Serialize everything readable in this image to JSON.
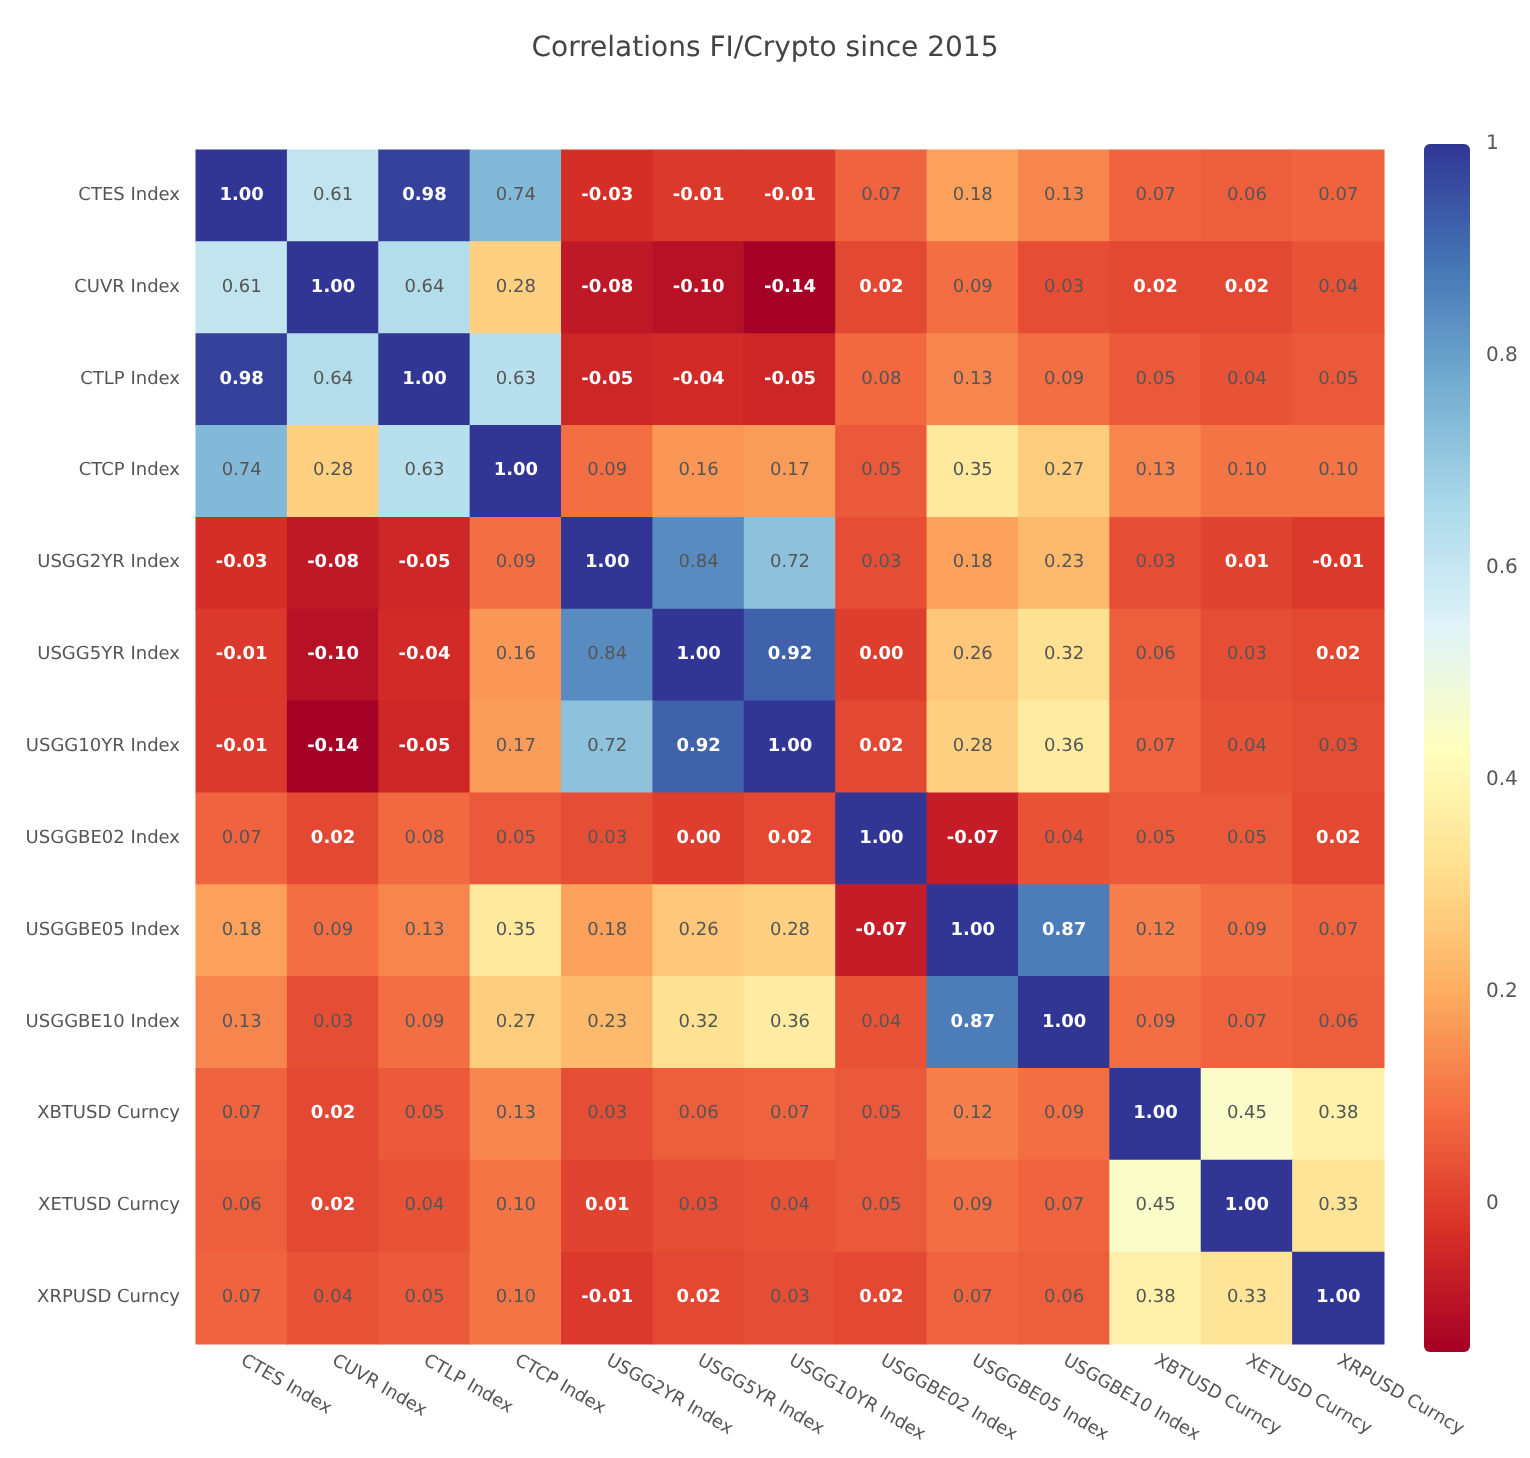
{
  "chart_data": {
    "type": "heatmap",
    "title": "Correlations FI/Crypto since 2015",
    "categories": [
      "CTES Index",
      "CUVR Index",
      "CTLP Index",
      "CTCP Index",
      "USGG2YR Index",
      "USGG5YR Index",
      "USGG10YR Index",
      "USGGBE02 Index",
      "USGGBE05 Index",
      "USGGBE10 Index",
      "XBTUSD Curncy",
      "XETUSD Curncy",
      "XRPUSD Curncy"
    ],
    "y_categories": [
      "CTES Index",
      "CUVR Index",
      "CTLP Index",
      "CTCP Index",
      "USGG2YR Index",
      "USGG5YR Index",
      "USGG10YR Index",
      "USGGBE02 Index",
      "USGGBE05 Index",
      "USGGBE10 Index",
      "XBTUSD Curncy",
      "XETUSD Curncy",
      "XRPUSD Curncy"
    ],
    "cells": [
      [
        1,
        0.61,
        0.98,
        0.74,
        -0.03,
        -0.01,
        -0.01,
        0.07,
        0.18,
        0.13,
        0.07,
        0.06,
        0.07
      ],
      [
        0.61,
        1,
        0.64,
        0.28,
        -0.08,
        -0.1,
        -0.14,
        0.02,
        0.09,
        0.03,
        0.02,
        0.02,
        0.04
      ],
      [
        0.98,
        0.64,
        1,
        0.63,
        -0.05,
        -0.04,
        -0.05,
        0.08,
        0.13,
        0.09,
        0.05,
        0.04,
        0.05
      ],
      [
        0.74,
        0.28,
        0.63,
        1,
        0.09,
        0.16,
        0.17,
        0.05,
        0.35,
        0.27,
        0.13,
        0.1,
        0.1
      ],
      [
        -0.03,
        -0.08,
        -0.05,
        0.09,
        1,
        0.84,
        0.72,
        0.03,
        0.18,
        0.23,
        0.03,
        0.01,
        -0.01
      ],
      [
        -0.01,
        -0.1,
        -0.04,
        0.16,
        0.84,
        1,
        0.92,
        0,
        0.26,
        0.32,
        0.06,
        0.03,
        0.02
      ],
      [
        -0.01,
        -0.14,
        -0.05,
        0.17,
        0.72,
        0.92,
        1,
        0.02,
        0.28,
        0.36,
        0.07,
        0.04,
        0.03
      ],
      [
        0.07,
        0.02,
        0.08,
        0.05,
        0.03,
        0,
        0.02,
        1,
        -0.07,
        0.04,
        0.05,
        0.05,
        0.02
      ],
      [
        0.18,
        0.09,
        0.13,
        0.35,
        0.18,
        0.26,
        0.28,
        -0.07,
        1,
        0.87,
        0.12,
        0.09,
        0.07
      ],
      [
        0.13,
        0.03,
        0.09,
        0.27,
        0.23,
        0.32,
        0.36,
        0.04,
        0.87,
        1,
        0.09,
        0.07,
        0.06
      ],
      [
        0.07,
        0.02,
        0.05,
        0.13,
        0.03,
        0.06,
        0.07,
        0.05,
        0.12,
        0.09,
        1,
        0.45,
        0.38
      ],
      [
        0.06,
        0.02,
        0.04,
        0.1,
        0.01,
        0.03,
        0.04,
        0.05,
        0.09,
        0.07,
        0.45,
        1,
        0.33
      ],
      [
        0.07,
        0.04,
        0.05,
        0.1,
        -0.01,
        0.02,
        0.03,
        0.02,
        0.07,
        0.06,
        0.38,
        0.33,
        1
      ]
    ],
    "cell_labels": [
      [
        "1.00",
        "0.61",
        "0.98",
        "0.74",
        "-0.03",
        "-0.01",
        "-0.01",
        "0.07",
        "0.18",
        "0.13",
        "0.07",
        "0.06",
        "0.07"
      ],
      [
        "0.61",
        "1.00",
        "0.64",
        "0.28",
        "-0.08",
        "-0.10",
        "-0.14",
        "0.02",
        "0.09",
        "0.03",
        "0.02",
        "0.02",
        "0.04"
      ],
      [
        "0.98",
        "0.64",
        "1.00",
        "0.63",
        "-0.05",
        "-0.04",
        "-0.05",
        "0.08",
        "0.13",
        "0.09",
        "0.05",
        "0.04",
        "0.05"
      ],
      [
        "0.74",
        "0.28",
        "0.63",
        "1.00",
        "0.09",
        "0.16",
        "0.17",
        "0.05",
        "0.35",
        "0.27",
        "0.13",
        "0.10",
        "0.10"
      ],
      [
        "-0.03",
        "-0.08",
        "-0.05",
        "0.09",
        "1.00",
        "0.84",
        "0.72",
        "0.03",
        "0.18",
        "0.23",
        "0.03",
        "0.01",
        "-0.01"
      ],
      [
        "-0.01",
        "-0.10",
        "-0.04",
        "0.16",
        "0.84",
        "1.00",
        "0.92",
        "0.00",
        "0.26",
        "0.32",
        "0.06",
        "0.03",
        "0.02"
      ],
      [
        "-0.01",
        "-0.14",
        "-0.05",
        "0.17",
        "0.72",
        "0.92",
        "1.00",
        "0.02",
        "0.28",
        "0.36",
        "0.07",
        "0.04",
        "0.03"
      ],
      [
        "0.07",
        "0.02",
        "0.08",
        "0.05",
        "0.03",
        "0.00",
        "0.02",
        "1.00",
        "-0.07",
        "0.04",
        "0.05",
        "0.05",
        "0.02"
      ],
      [
        "0.18",
        "0.09",
        "0.13",
        "0.35",
        "0.18",
        "0.26",
        "0.28",
        "-0.07",
        "1.00",
        "0.87",
        "0.12",
        "0.09",
        "0.07"
      ],
      [
        "0.13",
        "0.03",
        "0.09",
        "0.27",
        "0.23",
        "0.32",
        "0.36",
        "0.04",
        "0.87",
        "1.00",
        "0.09",
        "0.07",
        "0.06"
      ],
      [
        "0.07",
        "0.02",
        "0.05",
        "0.13",
        "0.03",
        "0.06",
        "0.07",
        "0.05",
        "0.12",
        "0.09",
        "1.00",
        "0.45",
        "0.38"
      ],
      [
        "0.06",
        "0.02",
        "0.04",
        "0.10",
        "0.01",
        "0.03",
        "0.04",
        "0.05",
        "0.09",
        "0.07",
        "0.45",
        "1.00",
        "0.33"
      ],
      [
        "0.07",
        "0.04",
        "0.05",
        "0.10",
        "-0.01",
        "0.02",
        "0.03",
        "0.02",
        "0.07",
        "0.06",
        "0.38",
        "0.33",
        "1.00"
      ]
    ],
    "clim": [
      -0.14,
      1
    ],
    "cticks": [
      0,
      0.2,
      0.4,
      0.6,
      0.8,
      1
    ]
  }
}
